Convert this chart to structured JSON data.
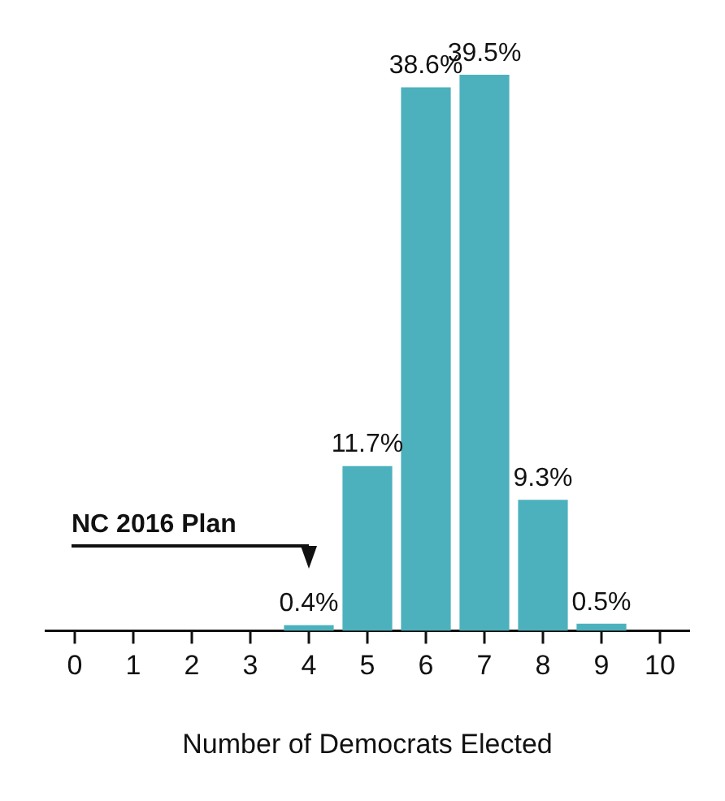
{
  "chart_data": {
    "type": "bar",
    "xlabel": "Number of Democrats Elected",
    "categories": [
      "0",
      "1",
      "2",
      "3",
      "4",
      "5",
      "6",
      "7",
      "8",
      "9",
      "10"
    ],
    "values": [
      0,
      0,
      0,
      0,
      0.4,
      11.7,
      38.6,
      39.5,
      9.3,
      0.5,
      0
    ],
    "value_labels": [
      null,
      null,
      null,
      null,
      "0.4%",
      "11.7%",
      "38.6%",
      "39.5%",
      "9.3%",
      "0.5%",
      null
    ],
    "color": "#4cb1bd",
    "tick_labels": "x",
    "grid": false,
    "legend": false,
    "annotations": [
      "NC 2016 Plan"
    ]
  }
}
